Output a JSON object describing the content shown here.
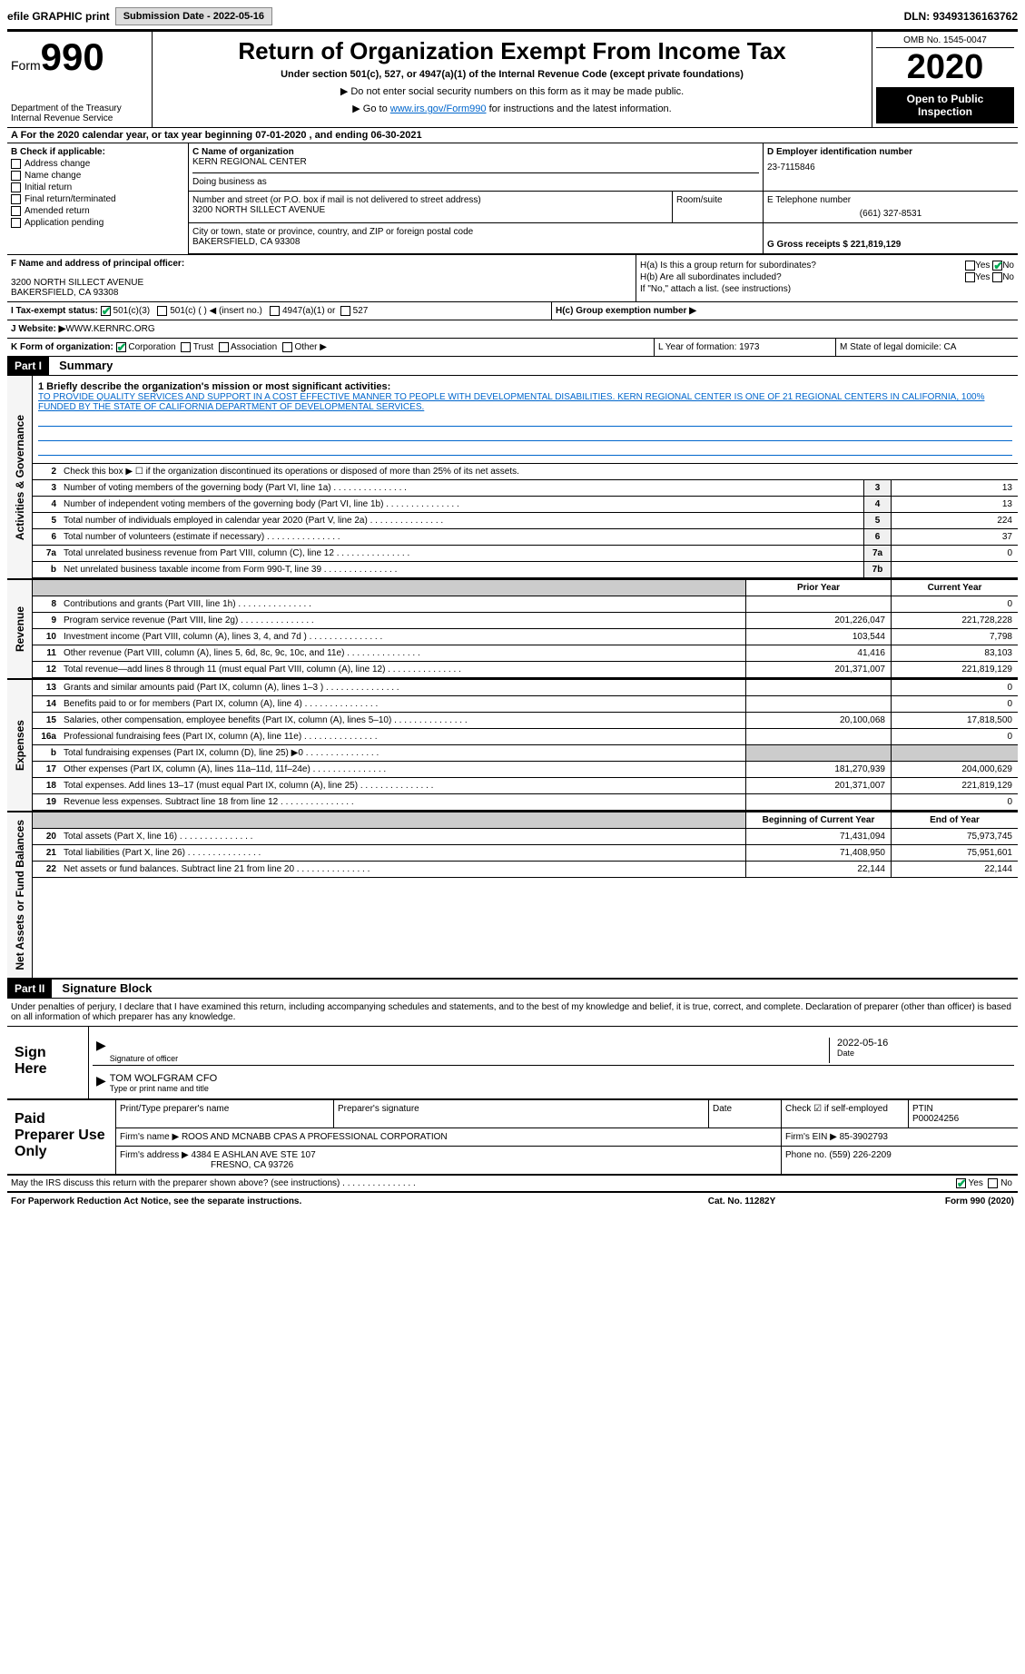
{
  "topbar": {
    "efile_label": "efile GRAPHIC print",
    "submission_label": "Submission Date - 2022-05-16",
    "dln_label": "DLN: 93493136163762"
  },
  "header": {
    "form_prefix": "Form",
    "form_number": "990",
    "dept": "Department of the Treasury",
    "irs": "Internal Revenue Service",
    "title": "Return of Organization Exempt From Income Tax",
    "subtitle": "Under section 501(c), 527, or 4947(a)(1) of the Internal Revenue Code (except private foundations)",
    "note1": "▶ Do not enter social security numbers on this form as it may be made public.",
    "note2_pre": "▶ Go to ",
    "note2_link": "www.irs.gov/Form990",
    "note2_post": " for instructions and the latest information.",
    "omb": "OMB No. 1545-0047",
    "year": "2020",
    "inspection": "Open to Public Inspection"
  },
  "period": {
    "label": "A For the 2020 calendar year, or tax year beginning 07-01-2020    , and ending 06-30-2021"
  },
  "section_b": {
    "label": "B Check if applicable:",
    "items": [
      "Address change",
      "Name change",
      "Initial return",
      "Final return/terminated",
      "Amended return",
      "Application pending"
    ]
  },
  "section_c": {
    "label": "C Name of organization",
    "name": "KERN REGIONAL CENTER",
    "dba_label": "Doing business as",
    "addr_label": "Number and street (or P.O. box if mail is not delivered to street address)",
    "addr": "3200 NORTH SILLECT AVENUE",
    "room_label": "Room/suite",
    "city_label": "City or town, state or province, country, and ZIP or foreign postal code",
    "city": "BAKERSFIELD, CA  93308"
  },
  "section_d": {
    "label": "D Employer identification number",
    "ein": "23-7115846"
  },
  "section_e": {
    "label": "E Telephone number",
    "phone": "(661) 327-8531"
  },
  "section_g": {
    "label": "G Gross receipts $ 221,819,129"
  },
  "section_f": {
    "label": "F  Name and address of principal officer:",
    "addr1": "3200 NORTH SILLECT AVENUE",
    "addr2": "BAKERSFIELD, CA  93308"
  },
  "section_h": {
    "ha_label": "H(a)  Is this a group return for subordinates?",
    "hb_label": "H(b)  Are all subordinates included?",
    "hb_note": "If \"No,\" attach a list. (see instructions)",
    "hc_label": "H(c)  Group exemption number ▶",
    "yes": "Yes",
    "no": "No"
  },
  "section_i": {
    "label": "I  Tax-exempt status:",
    "opt1": "501(c)(3)",
    "opt2": "501(c) (   ) ◀ (insert no.)",
    "opt3": "4947(a)(1) or",
    "opt4": "527"
  },
  "section_j": {
    "label": "J  Website: ▶",
    "value": " WWW.KERNRC.ORG"
  },
  "section_k": {
    "label": "K Form of organization:",
    "opts": [
      "Corporation",
      "Trust",
      "Association",
      "Other ▶"
    ]
  },
  "section_l": {
    "label": "L Year of formation: 1973"
  },
  "section_m": {
    "label": "M State of legal domicile: CA"
  },
  "part1": {
    "tab": "Part I",
    "title": "Summary",
    "vert1": "Activities & Governance",
    "vert2": "Revenue",
    "vert3": "Expenses",
    "vert4": "Net Assets or Fund Balances",
    "line1_label": "1  Briefly describe the organization's mission or most significant activities:",
    "mission": "TO PROVIDE QUALITY SERVICES AND SUPPORT IN A COST EFFECTIVE MANNER TO PEOPLE WITH DEVELOPMENTAL DISABILITIES. KERN REGIONAL CENTER IS ONE OF 21 REGIONAL CENTERS IN CALIFORNIA, 100% FUNDED BY THE STATE OF CALIFORNIA DEPARTMENT OF DEVELOPMENTAL SERVICES.",
    "line2": "Check this box ▶ ☐  if the organization discontinued its operations or disposed of more than 25% of its net assets.",
    "lines_ag": [
      {
        "num": "3",
        "desc": "Number of voting members of the governing body (Part VI, line 1a)",
        "box": "3",
        "val": "13"
      },
      {
        "num": "4",
        "desc": "Number of independent voting members of the governing body (Part VI, line 1b)",
        "box": "4",
        "val": "13"
      },
      {
        "num": "5",
        "desc": "Total number of individuals employed in calendar year 2020 (Part V, line 2a)",
        "box": "5",
        "val": "224"
      },
      {
        "num": "6",
        "desc": "Total number of volunteers (estimate if necessary)",
        "box": "6",
        "val": "37"
      },
      {
        "num": "7a",
        "desc": "Total unrelated business revenue from Part VIII, column (C), line 12",
        "box": "7a",
        "val": "0"
      },
      {
        "num": "b",
        "desc": "Net unrelated business taxable income from Form 990-T, line 39",
        "box": "7b",
        "val": ""
      }
    ],
    "prior_header": "Prior Year",
    "current_header": "Current Year",
    "lines_rev": [
      {
        "num": "8",
        "desc": "Contributions and grants (Part VIII, line 1h)",
        "prior": "",
        "cur": "0"
      },
      {
        "num": "9",
        "desc": "Program service revenue (Part VIII, line 2g)",
        "prior": "201,226,047",
        "cur": "221,728,228"
      },
      {
        "num": "10",
        "desc": "Investment income (Part VIII, column (A), lines 3, 4, and 7d )",
        "prior": "103,544",
        "cur": "7,798"
      },
      {
        "num": "11",
        "desc": "Other revenue (Part VIII, column (A), lines 5, 6d, 8c, 9c, 10c, and 11e)",
        "prior": "41,416",
        "cur": "83,103"
      },
      {
        "num": "12",
        "desc": "Total revenue—add lines 8 through 11 (must equal Part VIII, column (A), line 12)",
        "prior": "201,371,007",
        "cur": "221,819,129"
      }
    ],
    "lines_exp": [
      {
        "num": "13",
        "desc": "Grants and similar amounts paid (Part IX, column (A), lines 1–3 )",
        "prior": "",
        "cur": "0"
      },
      {
        "num": "14",
        "desc": "Benefits paid to or for members (Part IX, column (A), line 4)",
        "prior": "",
        "cur": "0"
      },
      {
        "num": "15",
        "desc": "Salaries, other compensation, employee benefits (Part IX, column (A), lines 5–10)",
        "prior": "20,100,068",
        "cur": "17,818,500"
      },
      {
        "num": "16a",
        "desc": "Professional fundraising fees (Part IX, column (A), line 11e)",
        "prior": "",
        "cur": "0"
      },
      {
        "num": "b",
        "desc": "Total fundraising expenses (Part IX, column (D), line 25) ▶0",
        "prior": "grey",
        "cur": "grey"
      },
      {
        "num": "17",
        "desc": "Other expenses (Part IX, column (A), lines 11a–11d, 11f–24e)",
        "prior": "181,270,939",
        "cur": "204,000,629"
      },
      {
        "num": "18",
        "desc": "Total expenses. Add lines 13–17 (must equal Part IX, column (A), line 25)",
        "prior": "201,371,007",
        "cur": "221,819,129"
      },
      {
        "num": "19",
        "desc": "Revenue less expenses. Subtract line 18 from line 12",
        "prior": "",
        "cur": "0"
      }
    ],
    "begin_header": "Beginning of Current Year",
    "end_header": "End of Year",
    "lines_net": [
      {
        "num": "20",
        "desc": "Total assets (Part X, line 16)",
        "prior": "71,431,094",
        "cur": "75,973,745"
      },
      {
        "num": "21",
        "desc": "Total liabilities (Part X, line 26)",
        "prior": "71,408,950",
        "cur": "75,951,601"
      },
      {
        "num": "22",
        "desc": "Net assets or fund balances. Subtract line 21 from line 20",
        "prior": "22,144",
        "cur": "22,144"
      }
    ]
  },
  "part2": {
    "tab": "Part II",
    "title": "Signature Block",
    "penalty": "Under penalties of perjury, I declare that I have examined this return, including accompanying schedules and statements, and to the best of my knowledge and belief, it is true, correct, and complete. Declaration of preparer (other than officer) is based on all information of which preparer has any knowledge.",
    "sign_here": "Sign Here",
    "sig_officer": "Signature of officer",
    "sig_date": "2022-05-16",
    "date_label": "Date",
    "officer_name": "TOM WOLFGRAM  CFO",
    "type_label": "Type or print name and title",
    "paid_prep": "Paid Preparer Use Only",
    "print_name_label": "Print/Type preparer's name",
    "prep_sig_label": "Preparer's signature",
    "prep_date_label": "Date",
    "check_self": "Check ☑ if self-employed",
    "ptin_label": "PTIN",
    "ptin": "P00024256",
    "firm_name_label": "Firm's name     ▶",
    "firm_name": "ROOS AND MCNABB CPAS A PROFESSIONAL CORPORATION",
    "firm_ein_label": "Firm's EIN ▶",
    "firm_ein": "85-3902793",
    "firm_addr_label": "Firm's address ▶",
    "firm_addr1": "4384 E ASHLAN AVE STE 107",
    "firm_addr2": "FRESNO, CA  93726",
    "phone_label": "Phone no.",
    "phone": "(559) 226-2209",
    "discuss": "May the IRS discuss this return with the preparer shown above? (see instructions)"
  },
  "footer": {
    "left": "For Paperwork Reduction Act Notice, see the separate instructions.",
    "mid": "Cat. No. 11282Y",
    "right_pre": "Form ",
    "right_num": "990",
    "right_post": " (2020)"
  }
}
